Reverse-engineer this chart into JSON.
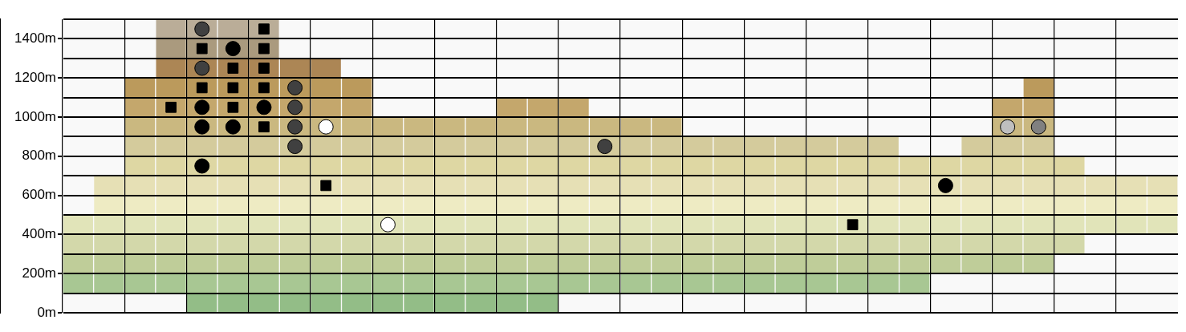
{
  "chart_data": {
    "type": "bar",
    "categories": [
      null,
      null,
      null,
      null,
      null,
      null,
      null,
      null,
      null,
      null,
      null,
      null,
      null,
      null,
      null,
      null,
      null,
      null,
      null,
      null,
      null,
      null,
      null,
      null,
      null,
      null,
      null,
      null,
      null,
      null,
      null,
      null,
      null,
      null,
      null,
      null
    ],
    "ylim": [
      0,
      1500
    ],
    "yticks": [
      {
        "value": 0,
        "label": "0m"
      },
      {
        "value": 100,
        "label": null
      },
      {
        "value": 200,
        "label": "200m"
      },
      {
        "value": 300,
        "label": null
      },
      {
        "value": 400,
        "label": "400m"
      },
      {
        "value": 500,
        "label": null
      },
      {
        "value": 600,
        "label": "600m"
      },
      {
        "value": 700,
        "label": null
      },
      {
        "value": 800,
        "label": "800m"
      },
      {
        "value": 900,
        "label": null
      },
      {
        "value": 1000,
        "label": "1000m"
      },
      {
        "value": 1100,
        "label": null
      },
      {
        "value": 1200,
        "label": "1200m"
      },
      {
        "value": 1300,
        "label": null
      },
      {
        "value": 1400,
        "label": "1400m"
      },
      {
        "value": 1500,
        "label": null
      }
    ],
    "tick_labels": "y",
    "grid": true,
    "series": [
      {
        "color": "#93bd87",
        "values": [
          null,
          null,
          null,
          null,
          100,
          100,
          100,
          100,
          100,
          100,
          100,
          100,
          100,
          100,
          100,
          100,
          null,
          null,
          null,
          null,
          null,
          null,
          null,
          null,
          null,
          null,
          null,
          null,
          null,
          null,
          null,
          null,
          null,
          null,
          null,
          null
        ],
        "base": [
          null,
          null,
          null,
          null,
          0,
          0,
          0,
          0,
          0,
          0,
          0,
          0,
          0,
          0,
          0,
          0,
          null,
          null,
          null,
          null,
          null,
          null,
          null,
          null,
          null,
          null,
          null,
          null,
          null,
          null,
          null,
          null,
          null,
          null,
          null,
          null
        ]
      },
      {
        "color": "#a8c793",
        "values": [
          100,
          100,
          100,
          100,
          100,
          100,
          100,
          100,
          100,
          100,
          100,
          100,
          100,
          100,
          100,
          100,
          100,
          100,
          100,
          100,
          100,
          100,
          100,
          100,
          100,
          100,
          100,
          100,
          null,
          null,
          null,
          null,
          null,
          null,
          null,
          null
        ],
        "base": [
          100,
          100,
          100,
          100,
          100,
          100,
          100,
          100,
          100,
          100,
          100,
          100,
          100,
          100,
          100,
          100,
          100,
          100,
          100,
          100,
          100,
          100,
          100,
          100,
          100,
          100,
          100,
          100,
          null,
          null,
          null,
          null,
          null,
          null,
          null,
          null
        ]
      },
      {
        "color": "#bfcd99",
        "values": [
          100,
          100,
          100,
          100,
          100,
          100,
          100,
          100,
          100,
          100,
          100,
          100,
          100,
          100,
          100,
          100,
          100,
          100,
          100,
          100,
          100,
          100,
          100,
          100,
          100,
          100,
          100,
          100,
          100,
          100,
          100,
          100,
          null,
          null,
          null,
          null
        ],
        "base": [
          200,
          200,
          200,
          200,
          200,
          200,
          200,
          200,
          200,
          200,
          200,
          200,
          200,
          200,
          200,
          200,
          200,
          200,
          200,
          200,
          200,
          200,
          200,
          200,
          200,
          200,
          200,
          200,
          200,
          200,
          200,
          200,
          null,
          null,
          null,
          null
        ]
      },
      {
        "color": "#d3d8aa",
        "values": [
          100,
          100,
          100,
          100,
          100,
          100,
          100,
          100,
          100,
          100,
          100,
          100,
          100,
          100,
          100,
          100,
          100,
          100,
          100,
          100,
          100,
          100,
          100,
          100,
          100,
          100,
          100,
          100,
          100,
          100,
          100,
          100,
          100,
          null,
          null,
          null
        ],
        "base": [
          300,
          300,
          300,
          300,
          300,
          300,
          300,
          300,
          300,
          300,
          300,
          300,
          300,
          300,
          300,
          300,
          300,
          300,
          300,
          300,
          300,
          300,
          300,
          300,
          300,
          300,
          300,
          300,
          300,
          300,
          300,
          300,
          300,
          null,
          null,
          null
        ]
      },
      {
        "color": "#e1e4b9",
        "values": [
          100,
          100,
          100,
          100,
          100,
          100,
          100,
          100,
          100,
          100,
          100,
          100,
          100,
          100,
          100,
          100,
          100,
          100,
          100,
          100,
          100,
          100,
          100,
          100,
          100,
          100,
          100,
          100,
          100,
          100,
          100,
          100,
          100,
          100,
          100,
          100
        ],
        "base": [
          400,
          400,
          400,
          400,
          400,
          400,
          400,
          400,
          400,
          400,
          400,
          400,
          400,
          400,
          400,
          400,
          400,
          400,
          400,
          400,
          400,
          400,
          400,
          400,
          400,
          400,
          400,
          400,
          400,
          400,
          400,
          400,
          400,
          400,
          400,
          400
        ]
      },
      {
        "color": "#eeebc3",
        "values": [
          null,
          100,
          100,
          100,
          100,
          100,
          100,
          100,
          100,
          100,
          100,
          100,
          100,
          100,
          100,
          100,
          100,
          100,
          100,
          100,
          100,
          100,
          100,
          100,
          100,
          100,
          100,
          100,
          100,
          100,
          100,
          100,
          100,
          100,
          100,
          100
        ],
        "base": [
          null,
          500,
          500,
          500,
          500,
          500,
          500,
          500,
          500,
          500,
          500,
          500,
          500,
          500,
          500,
          500,
          500,
          500,
          500,
          500,
          500,
          500,
          500,
          500,
          500,
          500,
          500,
          500,
          500,
          500,
          500,
          500,
          500,
          500,
          500,
          500
        ]
      },
      {
        "color": "#e6e0b5",
        "values": [
          null,
          100,
          100,
          100,
          100,
          100,
          100,
          100,
          100,
          100,
          100,
          100,
          100,
          100,
          100,
          100,
          100,
          100,
          100,
          100,
          100,
          100,
          100,
          100,
          100,
          100,
          100,
          100,
          100,
          100,
          100,
          100,
          100,
          100,
          100,
          100
        ],
        "base": [
          null,
          600,
          600,
          600,
          600,
          600,
          600,
          600,
          600,
          600,
          600,
          600,
          600,
          600,
          600,
          600,
          600,
          600,
          600,
          600,
          600,
          600,
          600,
          600,
          600,
          600,
          600,
          600,
          600,
          600,
          600,
          600,
          600,
          600,
          600,
          600
        ]
      },
      {
        "color": "#ded7a3",
        "values": [
          null,
          null,
          100,
          100,
          100,
          100,
          100,
          100,
          100,
          100,
          100,
          100,
          100,
          100,
          100,
          100,
          100,
          100,
          100,
          100,
          100,
          100,
          100,
          100,
          100,
          100,
          100,
          100,
          100,
          100,
          100,
          100,
          100,
          null,
          null,
          null
        ],
        "base": [
          null,
          null,
          700,
          700,
          700,
          700,
          700,
          700,
          700,
          700,
          700,
          700,
          700,
          700,
          700,
          700,
          700,
          700,
          700,
          700,
          700,
          700,
          700,
          700,
          700,
          700,
          700,
          700,
          700,
          700,
          700,
          700,
          700,
          null,
          null,
          null
        ]
      },
      {
        "color": "#d4cb9c",
        "values": [
          null,
          null,
          100,
          100,
          100,
          100,
          100,
          100,
          100,
          100,
          100,
          100,
          100,
          100,
          100,
          100,
          100,
          100,
          100,
          100,
          100,
          100,
          100,
          100,
          100,
          100,
          100,
          null,
          null,
          100,
          100,
          100,
          null,
          null,
          null,
          null
        ],
        "base": [
          null,
          null,
          800,
          800,
          800,
          800,
          800,
          800,
          800,
          800,
          800,
          800,
          800,
          800,
          800,
          800,
          800,
          800,
          800,
          800,
          800,
          800,
          800,
          800,
          800,
          800,
          800,
          null,
          null,
          800,
          800,
          800,
          null,
          null,
          null,
          null
        ]
      },
      {
        "color": "#cab880",
        "values": [
          null,
          null,
          100,
          100,
          100,
          100,
          100,
          100,
          100,
          100,
          100,
          100,
          100,
          100,
          100,
          100,
          100,
          100,
          100,
          100,
          null,
          null,
          null,
          null,
          null,
          null,
          null,
          null,
          null,
          null,
          100,
          100,
          null,
          null,
          null,
          null
        ],
        "base": [
          null,
          null,
          900,
          900,
          900,
          900,
          900,
          900,
          900,
          900,
          900,
          900,
          900,
          900,
          900,
          900,
          900,
          900,
          900,
          900,
          null,
          null,
          null,
          null,
          null,
          null,
          null,
          null,
          null,
          null,
          900,
          900,
          null,
          null,
          null,
          null
        ]
      },
      {
        "color": "#c4a76c",
        "values": [
          null,
          null,
          100,
          100,
          100,
          100,
          100,
          100,
          100,
          100,
          null,
          null,
          null,
          null,
          100,
          100,
          100,
          null,
          null,
          null,
          null,
          null,
          null,
          null,
          null,
          null,
          null,
          null,
          null,
          null,
          100,
          100,
          null,
          null,
          null,
          null
        ],
        "base": [
          null,
          null,
          1000,
          1000,
          1000,
          1000,
          1000,
          1000,
          1000,
          1000,
          null,
          null,
          null,
          null,
          1000,
          1000,
          1000,
          null,
          null,
          null,
          null,
          null,
          null,
          null,
          null,
          null,
          null,
          null,
          null,
          null,
          1000,
          1000,
          null,
          null,
          null,
          null
        ]
      },
      {
        "color": "#bb9a5c",
        "values": [
          null,
          null,
          100,
          100,
          100,
          100,
          100,
          100,
          100,
          100,
          null,
          null,
          null,
          null,
          null,
          null,
          null,
          null,
          null,
          null,
          null,
          null,
          null,
          null,
          null,
          null,
          null,
          null,
          null,
          null,
          null,
          100,
          null,
          null,
          null,
          null
        ],
        "base": [
          null,
          null,
          1100,
          1100,
          1100,
          1100,
          1100,
          1100,
          1100,
          1100,
          null,
          null,
          null,
          null,
          null,
          null,
          null,
          null,
          null,
          null,
          null,
          null,
          null,
          null,
          null,
          null,
          null,
          null,
          null,
          null,
          null,
          1100,
          null,
          null,
          null,
          null
        ]
      },
      {
        "color": "#ac8655",
        "values": [
          null,
          null,
          null,
          100,
          100,
          100,
          100,
          100,
          100,
          null,
          null,
          null,
          null,
          null,
          null,
          null,
          null,
          null,
          null,
          null,
          null,
          null,
          null,
          null,
          null,
          null,
          null,
          null,
          null,
          null,
          null,
          null,
          null,
          null,
          null,
          null
        ],
        "base": [
          null,
          null,
          null,
          1200,
          1200,
          1200,
          1200,
          1200,
          1200,
          null,
          null,
          null,
          null,
          null,
          null,
          null,
          null,
          null,
          null,
          null,
          null,
          null,
          null,
          null,
          null,
          null,
          null,
          null,
          null,
          null,
          null,
          null,
          null,
          null,
          null,
          null
        ]
      },
      {
        "color": "#aa9a7e",
        "values": [
          null,
          null,
          null,
          100,
          100,
          100,
          100,
          null,
          null,
          null,
          null,
          null,
          null,
          null,
          null,
          null,
          null,
          null,
          null,
          null,
          null,
          null,
          null,
          null,
          null,
          null,
          null,
          null,
          null,
          null,
          null,
          null,
          null,
          null,
          null,
          null
        ],
        "base": [
          null,
          null,
          null,
          1300,
          1300,
          1300,
          1300,
          null,
          null,
          null,
          null,
          null,
          null,
          null,
          null,
          null,
          null,
          null,
          null,
          null,
          null,
          null,
          null,
          null,
          null,
          null,
          null,
          null,
          null,
          null,
          null,
          null,
          null,
          null,
          null,
          null
        ]
      },
      {
        "color": "#baad98",
        "values": [
          null,
          null,
          null,
          100,
          100,
          100,
          100,
          null,
          null,
          null,
          null,
          null,
          null,
          null,
          null,
          null,
          null,
          null,
          null,
          null,
          null,
          null,
          null,
          null,
          null,
          null,
          null,
          null,
          null,
          null,
          null,
          null,
          null,
          null,
          null,
          null
        ],
        "base": [
          null,
          null,
          null,
          1400,
          1400,
          1400,
          1400,
          null,
          null,
          null,
          null,
          null,
          null,
          null,
          null,
          null,
          null,
          null,
          null,
          null,
          null,
          null,
          null,
          null,
          null,
          null,
          null,
          null,
          null,
          null,
          null,
          null,
          null,
          null,
          null,
          null
        ]
      },
      {
        "type": "scatter",
        "marker": "circle",
        "color": "#000000",
        "values": [
          null,
          null,
          null,
          null,
          1050,
          1350,
          1050,
          null,
          null,
          null,
          null,
          null,
          null,
          null,
          null,
          null,
          null,
          null,
          null,
          null,
          null,
          null,
          null,
          null,
          null,
          null,
          null,
          null,
          650,
          null,
          null,
          null,
          null,
          null,
          null,
          null
        ]
      },
      {
        "type": "scatter",
        "marker": "circle",
        "color": "#000000",
        "values": [
          null,
          null,
          null,
          null,
          950,
          950,
          null,
          null,
          null,
          null,
          null,
          null,
          null,
          null,
          null,
          null,
          null,
          null,
          null,
          null,
          null,
          null,
          null,
          null,
          null,
          null,
          null,
          null,
          null,
          null,
          null,
          null,
          null,
          null,
          null,
          null
        ]
      },
      {
        "type": "scatter",
        "marker": "circle",
        "color": "#000000",
        "values": [
          null,
          null,
          null,
          null,
          750,
          null,
          null,
          null,
          null,
          null,
          null,
          null,
          null,
          null,
          null,
          null,
          null,
          null,
          null,
          null,
          null,
          null,
          null,
          null,
          null,
          null,
          null,
          null,
          null,
          null,
          null,
          null,
          null,
          null,
          null,
          null
        ]
      },
      {
        "type": "scatter",
        "marker": "square",
        "color": "#000000",
        "values": [
          null,
          null,
          null,
          1050,
          1350,
          1250,
          1450,
          null,
          650,
          null,
          null,
          null,
          null,
          null,
          null,
          null,
          null,
          null,
          null,
          null,
          null,
          null,
          null,
          null,
          null,
          450,
          null,
          null,
          null,
          null,
          null,
          null,
          null,
          null,
          null,
          null
        ]
      },
      {
        "type": "scatter",
        "marker": "square",
        "color": "#000000",
        "values": [
          null,
          null,
          null,
          null,
          1150,
          1150,
          1350,
          null,
          null,
          null,
          null,
          null,
          null,
          null,
          null,
          null,
          null,
          null,
          null,
          null,
          null,
          null,
          null,
          null,
          null,
          null,
          null,
          null,
          null,
          null,
          null,
          null,
          null,
          null,
          null,
          null
        ]
      },
      {
        "type": "scatter",
        "marker": "square",
        "color": "#000000",
        "values": [
          null,
          null,
          null,
          null,
          null,
          1050,
          1250,
          null,
          null,
          null,
          null,
          null,
          null,
          null,
          null,
          null,
          null,
          null,
          null,
          null,
          null,
          null,
          null,
          null,
          null,
          null,
          null,
          null,
          null,
          null,
          null,
          null,
          null,
          null,
          null,
          null
        ]
      },
      {
        "type": "scatter",
        "marker": "square",
        "color": "#000000",
        "values": [
          null,
          null,
          null,
          null,
          null,
          null,
          1150,
          null,
          null,
          null,
          null,
          null,
          null,
          null,
          null,
          null,
          null,
          null,
          null,
          null,
          null,
          null,
          null,
          null,
          null,
          null,
          null,
          null,
          null,
          null,
          null,
          null,
          null,
          null,
          null,
          null
        ]
      },
      {
        "type": "scatter",
        "marker": "square",
        "color": "#000000",
        "values": [
          null,
          null,
          null,
          null,
          null,
          null,
          950,
          null,
          null,
          null,
          null,
          null,
          null,
          null,
          null,
          null,
          null,
          null,
          null,
          null,
          null,
          null,
          null,
          null,
          null,
          null,
          null,
          null,
          null,
          null,
          null,
          null,
          null,
          null,
          null,
          null
        ]
      },
      {
        "type": "scatter",
        "marker": "circle",
        "color": "#ffffff",
        "values": [
          null,
          null,
          null,
          null,
          null,
          null,
          null,
          null,
          950,
          null,
          450,
          null,
          null,
          null,
          null,
          null,
          null,
          null,
          null,
          null,
          null,
          null,
          null,
          null,
          null,
          null,
          null,
          null,
          null,
          null,
          null,
          null,
          null,
          null,
          null,
          null
        ]
      },
      {
        "type": "scatter",
        "marker": "circle",
        "color": "#404040",
        "values": [
          null,
          null,
          null,
          null,
          1450,
          null,
          null,
          1150,
          null,
          null,
          null,
          null,
          null,
          null,
          null,
          null,
          null,
          850,
          null,
          null,
          null,
          null,
          null,
          null,
          null,
          null,
          null,
          null,
          null,
          null,
          null,
          null,
          null,
          null,
          null,
          null
        ]
      },
      {
        "type": "scatter",
        "marker": "circle",
        "color": "#404040",
        "values": [
          null,
          null,
          null,
          null,
          1250,
          null,
          null,
          1050,
          null,
          null,
          null,
          null,
          null,
          null,
          null,
          null,
          null,
          null,
          null,
          null,
          null,
          null,
          null,
          null,
          null,
          null,
          null,
          null,
          null,
          null,
          null,
          null,
          null,
          null,
          null,
          null
        ]
      },
      {
        "type": "scatter",
        "marker": "circle",
        "color": "#404040",
        "values": [
          null,
          null,
          null,
          null,
          null,
          null,
          null,
          950,
          null,
          null,
          null,
          null,
          null,
          null,
          null,
          null,
          null,
          null,
          null,
          null,
          null,
          null,
          null,
          null,
          null,
          null,
          null,
          null,
          null,
          null,
          null,
          null,
          null,
          null,
          null,
          null
        ]
      },
      {
        "type": "scatter",
        "marker": "circle",
        "color": "#404040",
        "values": [
          null,
          null,
          null,
          null,
          null,
          null,
          null,
          850,
          null,
          null,
          null,
          null,
          null,
          null,
          null,
          null,
          null,
          null,
          null,
          null,
          null,
          null,
          null,
          null,
          null,
          null,
          null,
          null,
          null,
          null,
          null,
          null,
          null,
          null,
          null,
          null
        ]
      },
      {
        "type": "scatter",
        "marker": "circle",
        "color": "#bfbfbf",
        "values": [
          null,
          null,
          null,
          null,
          null,
          null,
          null,
          null,
          null,
          null,
          null,
          null,
          null,
          null,
          null,
          null,
          null,
          null,
          null,
          null,
          null,
          null,
          null,
          null,
          null,
          null,
          null,
          null,
          null,
          null,
          950,
          null,
          null,
          null,
          null,
          null
        ]
      },
      {
        "type": "scatter",
        "marker": "circle",
        "color": "#808080",
        "values": [
          null,
          null,
          null,
          null,
          null,
          null,
          null,
          null,
          null,
          null,
          null,
          null,
          null,
          null,
          null,
          null,
          null,
          null,
          null,
          null,
          null,
          null,
          null,
          null,
          null,
          null,
          null,
          null,
          null,
          null,
          null,
          950,
          null,
          null,
          null,
          null
        ]
      }
    ]
  }
}
